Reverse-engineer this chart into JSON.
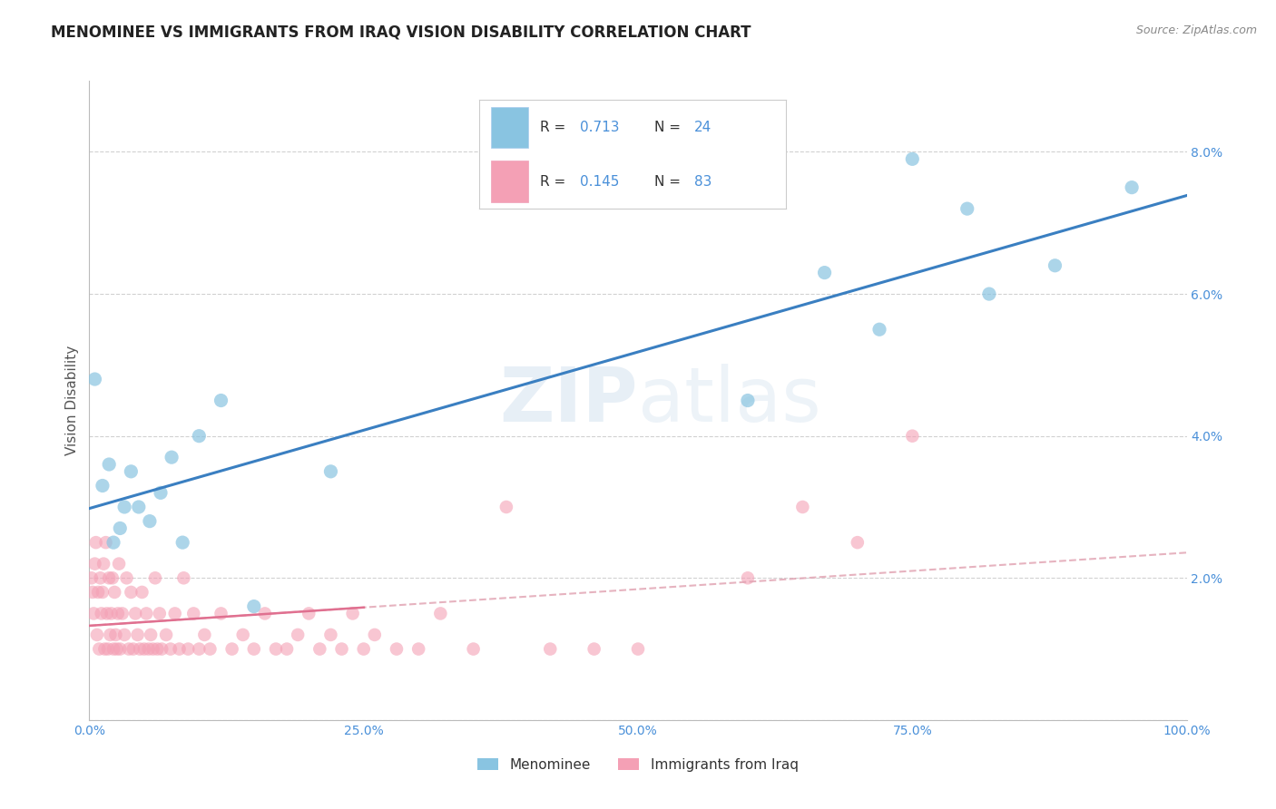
{
  "title": "MENOMINEE VS IMMIGRANTS FROM IRAQ VISION DISABILITY CORRELATION CHART",
  "source": "Source: ZipAtlas.com",
  "ylabel": "Vision Disability",
  "watermark": "ZIPatlas",
  "legend_label1": "Menominee",
  "legend_label2": "Immigrants from Iraq",
  "r1": 0.713,
  "n1": 24,
  "r2": 0.145,
  "n2": 83,
  "color1": "#89c4e1",
  "color2": "#f4a0b5",
  "line_color1": "#3a7fc1",
  "line_color2": "#e07090",
  "trendline2_color": "#e0a0b0",
  "xlim": [
    0.0,
    1.0
  ],
  "ylim": [
    0.0,
    0.09
  ],
  "xtick_vals": [
    0.0,
    0.25,
    0.5,
    0.75,
    1.0
  ],
  "xticklabels": [
    "0.0%",
    "25.0%",
    "50.0%",
    "75.0%",
    "100.0%"
  ],
  "ytick_vals": [
    0.0,
    0.02,
    0.04,
    0.06,
    0.08
  ],
  "yticklabels": [
    "",
    "2.0%",
    "4.0%",
    "6.0%",
    "8.0%"
  ],
  "menominee_x": [
    0.005,
    0.012,
    0.018,
    0.022,
    0.028,
    0.032,
    0.038,
    0.045,
    0.055,
    0.065,
    0.075,
    0.085,
    0.1,
    0.12,
    0.15,
    0.22,
    0.6,
    0.67,
    0.72,
    0.75,
    0.8,
    0.82,
    0.88,
    0.95
  ],
  "menominee_y": [
    0.048,
    0.033,
    0.036,
    0.025,
    0.027,
    0.03,
    0.035,
    0.03,
    0.028,
    0.032,
    0.037,
    0.025,
    0.04,
    0.045,
    0.016,
    0.035,
    0.045,
    0.063,
    0.055,
    0.079,
    0.072,
    0.06,
    0.064,
    0.075
  ],
  "iraq_x": [
    0.002,
    0.003,
    0.004,
    0.005,
    0.006,
    0.007,
    0.008,
    0.009,
    0.01,
    0.011,
    0.012,
    0.013,
    0.014,
    0.015,
    0.016,
    0.017,
    0.018,
    0.019,
    0.02,
    0.021,
    0.022,
    0.023,
    0.024,
    0.025,
    0.026,
    0.027,
    0.028,
    0.03,
    0.032,
    0.034,
    0.036,
    0.038,
    0.04,
    0.042,
    0.044,
    0.046,
    0.048,
    0.05,
    0.052,
    0.054,
    0.056,
    0.058,
    0.06,
    0.062,
    0.064,
    0.066,
    0.07,
    0.074,
    0.078,
    0.082,
    0.086,
    0.09,
    0.095,
    0.1,
    0.105,
    0.11,
    0.12,
    0.13,
    0.14,
    0.15,
    0.16,
    0.17,
    0.18,
    0.19,
    0.2,
    0.21,
    0.22,
    0.23,
    0.24,
    0.25,
    0.26,
    0.28,
    0.3,
    0.32,
    0.35,
    0.38,
    0.42,
    0.46,
    0.5,
    0.6,
    0.65,
    0.7,
    0.75
  ],
  "iraq_y": [
    0.02,
    0.018,
    0.015,
    0.022,
    0.025,
    0.012,
    0.018,
    0.01,
    0.02,
    0.015,
    0.018,
    0.022,
    0.01,
    0.025,
    0.015,
    0.01,
    0.02,
    0.012,
    0.015,
    0.02,
    0.01,
    0.018,
    0.012,
    0.01,
    0.015,
    0.022,
    0.01,
    0.015,
    0.012,
    0.02,
    0.01,
    0.018,
    0.01,
    0.015,
    0.012,
    0.01,
    0.018,
    0.01,
    0.015,
    0.01,
    0.012,
    0.01,
    0.02,
    0.01,
    0.015,
    0.01,
    0.012,
    0.01,
    0.015,
    0.01,
    0.02,
    0.01,
    0.015,
    0.01,
    0.012,
    0.01,
    0.015,
    0.01,
    0.012,
    0.01,
    0.015,
    0.01,
    0.01,
    0.012,
    0.015,
    0.01,
    0.012,
    0.01,
    0.015,
    0.01,
    0.012,
    0.01,
    0.01,
    0.015,
    0.01,
    0.03,
    0.01,
    0.01,
    0.01,
    0.02,
    0.03,
    0.025,
    0.04
  ],
  "background_color": "#ffffff",
  "grid_color": "#cccccc",
  "title_color": "#222222",
  "tick_color": "#4a90d9",
  "axis_color": "#bbbbbb",
  "title_fontsize": 12,
  "label_fontsize": 11,
  "tick_fontsize": 10,
  "source_fontsize": 9
}
